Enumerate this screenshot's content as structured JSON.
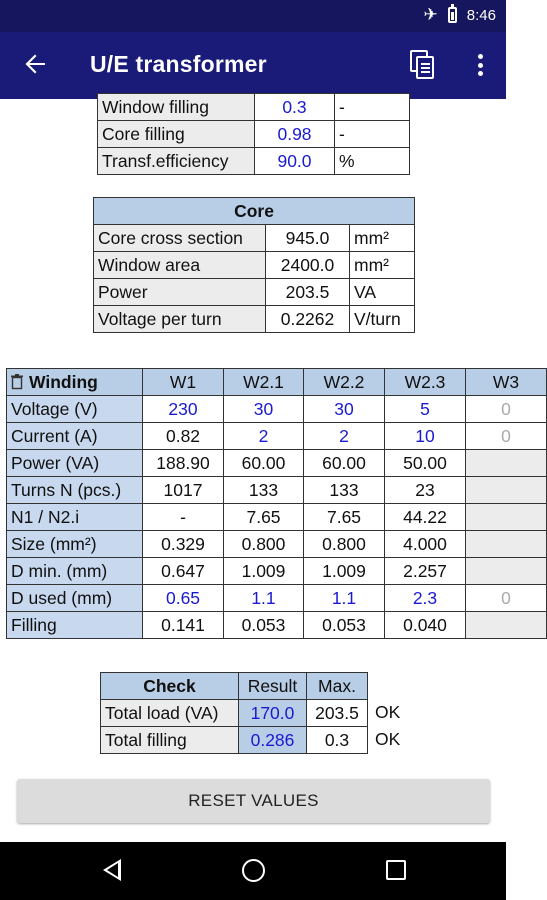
{
  "status_bar": {
    "time": "8:46",
    "icons": [
      "airplane-icon",
      "battery-icon"
    ]
  },
  "app_bar": {
    "title": "U/E transformer",
    "icons": [
      "back-arrow-icon",
      "copy-icon",
      "more-vert-icon"
    ]
  },
  "params": [
    {
      "label": "Window filling",
      "value": "0.3",
      "unit": "-"
    },
    {
      "label": "Core filling",
      "value": "0.98",
      "unit": "-"
    },
    {
      "label": "Transf.efficiency",
      "value": "90.0",
      "unit": "%"
    }
  ],
  "core": {
    "header": "Core",
    "rows": [
      {
        "label": "Core cross section",
        "value": "945.0",
        "unit": "mm²"
      },
      {
        "label": "Window area",
        "value": "2400.0",
        "unit": "mm²"
      },
      {
        "label": "Power",
        "value": "203.5",
        "unit": "VA"
      },
      {
        "label": "Voltage per turn",
        "value": "0.2262",
        "unit": "V/turn"
      }
    ]
  },
  "winding": {
    "header": "Winding",
    "columns": [
      "W1",
      "W2.1",
      "W2.2",
      "W2.3",
      "W3"
    ],
    "rows": [
      {
        "label": "Voltage (V)",
        "values": [
          "230",
          "30",
          "30",
          "5",
          "0"
        ]
      },
      {
        "label": "Current (A)",
        "values": [
          "0.82",
          "2",
          "2",
          "10",
          "0"
        ]
      },
      {
        "label": "Power (VA)",
        "values": [
          "188.90",
          "60.00",
          "60.00",
          "50.00",
          ""
        ]
      },
      {
        "label": "Turns N (pcs.)",
        "values": [
          "1017",
          "133",
          "133",
          "23",
          ""
        ]
      },
      {
        "label": "N1 / N2.i",
        "values": [
          "-",
          "7.65",
          "7.65",
          "44.22",
          ""
        ]
      },
      {
        "label": "Size (mm²)",
        "values": [
          "0.329",
          "0.800",
          "0.800",
          "4.000",
          ""
        ]
      },
      {
        "label": "D min. (mm)",
        "values": [
          "0.647",
          "1.009",
          "1.009",
          "2.257",
          ""
        ]
      },
      {
        "label": "D used (mm)",
        "values": [
          "0.65",
          "1.1",
          "1.1",
          "2.3",
          "0"
        ]
      },
      {
        "label": "Filling",
        "values": [
          "0.141",
          "0.053",
          "0.053",
          "0.040",
          ""
        ]
      }
    ]
  },
  "check": {
    "header": "Check",
    "col_result": "Result",
    "col_max": "Max.",
    "rows": [
      {
        "label": "Total load (VA)",
        "result": "170.0",
        "max": "203.5",
        "status": "OK"
      },
      {
        "label": "Total filling",
        "result": "0.286",
        "max": "0.3",
        "status": "OK"
      }
    ]
  },
  "reset_label": "RESET VALUES",
  "colors": {
    "status_bar": "#16165e",
    "app_bar": "#1a1a78",
    "header_cell": "#b8cde6",
    "label_cell": "#ececec",
    "input_text": "#1a1ad0"
  }
}
